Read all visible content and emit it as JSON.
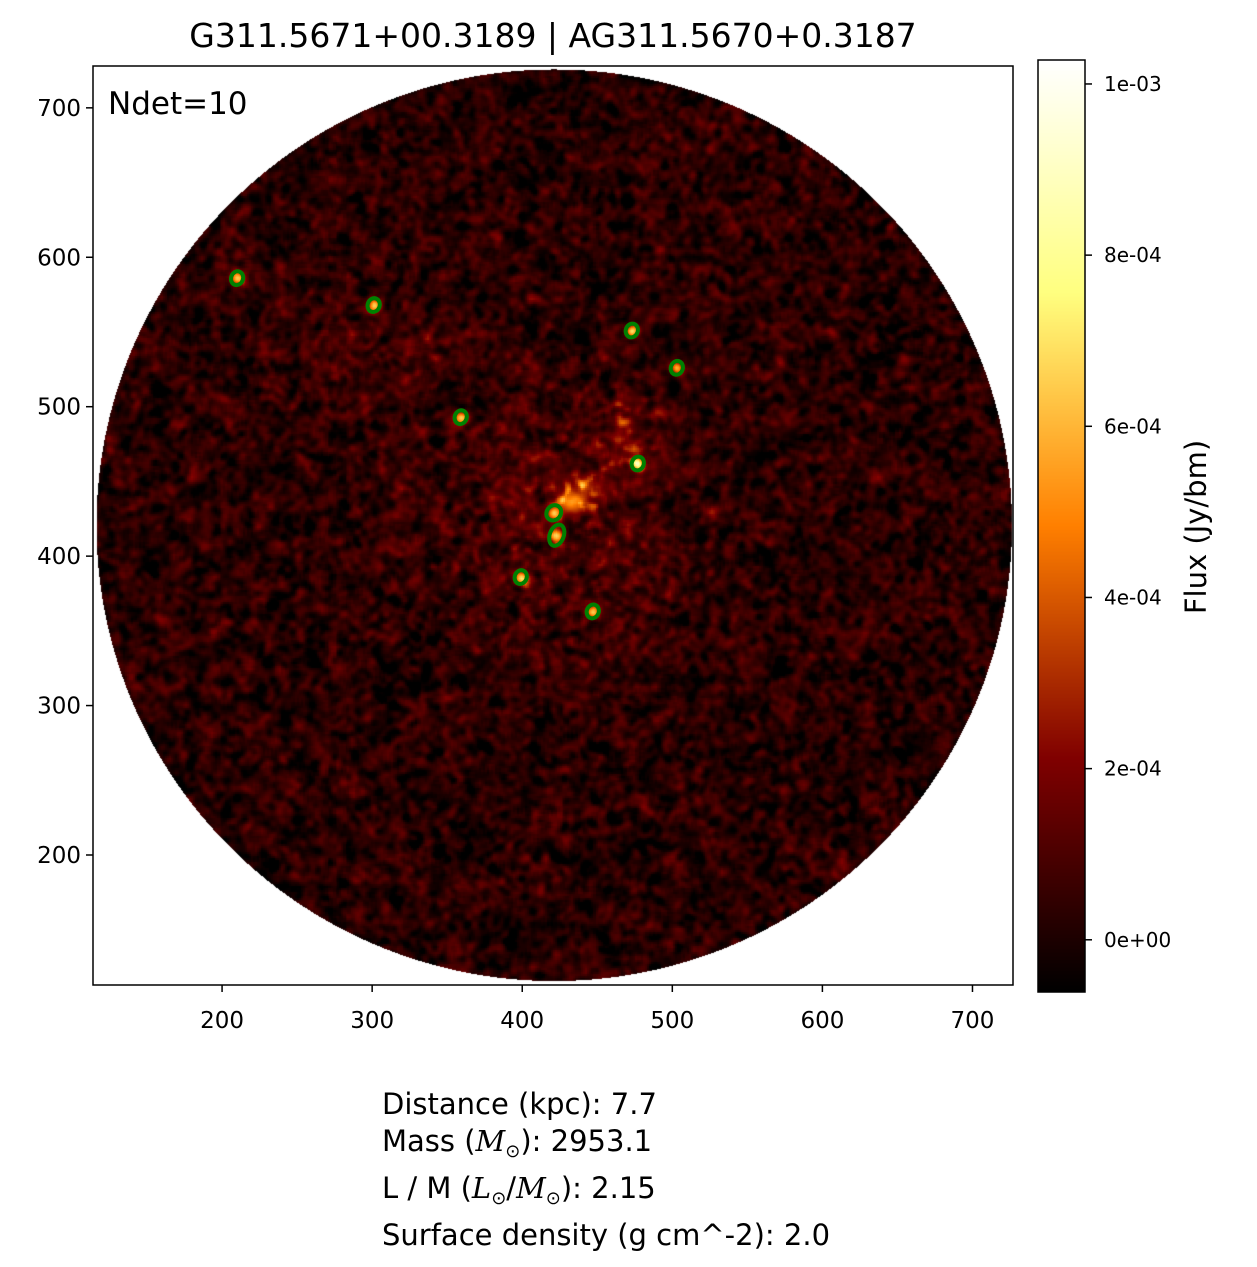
{
  "chart_data": {
    "type": "heatmap",
    "title": "G311.5671+00.3189 | AG311.5670+0.3187",
    "annotation": "Ndet=10",
    "xlim": [
      114,
      727
    ],
    "ylim": [
      113,
      728
    ],
    "xticks": [
      200,
      300,
      400,
      500,
      600,
      700
    ],
    "yticks": [
      200,
      300,
      400,
      500,
      600,
      700
    ],
    "image_footprint": {
      "shape": "circle",
      "center": [
        421,
        421
      ],
      "radius": 305
    },
    "colormap": "afmhot",
    "colorbar": {
      "label": "Flux (Jy/bm)",
      "range": [
        -6.1e-05,
        0.001028
      ],
      "ticks": [
        0,
        0.0002,
        0.0004,
        0.0006,
        0.0008,
        0.001
      ],
      "tick_labels": [
        "0e+00",
        "2e-04",
        "4e-04",
        "6e-04",
        "8e-04",
        "1e-03"
      ]
    },
    "contour_color": "#008000",
    "detections": [
      {
        "x": 210,
        "y": 586
      },
      {
        "x": 301,
        "y": 568
      },
      {
        "x": 473,
        "y": 551
      },
      {
        "x": 503,
        "y": 526
      },
      {
        "x": 359,
        "y": 493
      },
      {
        "x": 477,
        "y": 462
      },
      {
        "x": 421,
        "y": 429
      },
      {
        "x": 423,
        "y": 414
      },
      {
        "x": 399,
        "y": 386
      },
      {
        "x": 447,
        "y": 363
      }
    ]
  },
  "info": {
    "distance": "Distance (kpc): 7.7",
    "mass_prefix": "Mass (",
    "mass_value": "): 2953.1",
    "lm_prefix": "L / M (",
    "lm_value": "): 2.15",
    "surface_density": "Surface density (g cm^-2): 2.0",
    "M": "M",
    "L": "L",
    "sun": "⊙"
  }
}
